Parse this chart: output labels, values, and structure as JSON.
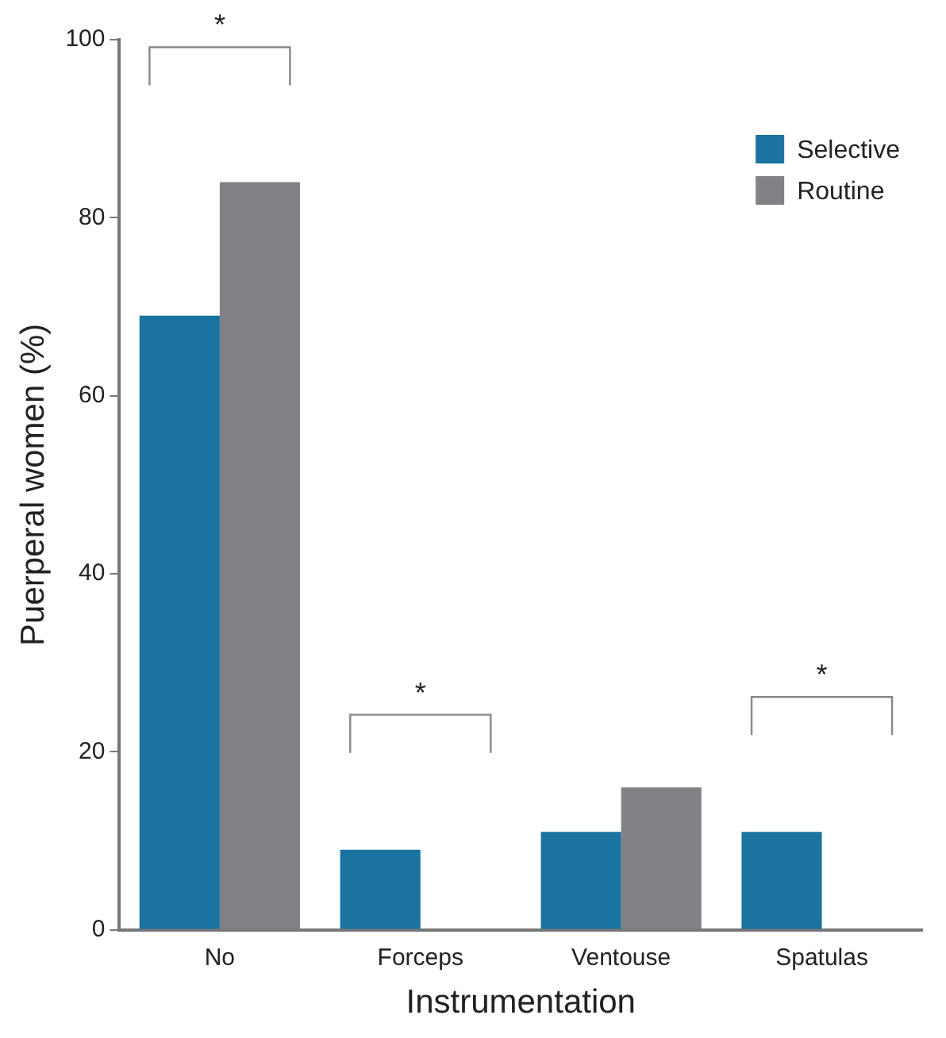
{
  "chart_data": {
    "type": "bar",
    "xlabel": "Instrumentation",
    "ylabel": "Puerperal women (%)",
    "categories": [
      "No",
      "Forceps",
      "Ventouse",
      "Spatulas"
    ],
    "series": [
      {
        "name": "Selective",
        "color": "#1a73a0",
        "values": [
          69,
          9,
          11,
          11
        ]
      },
      {
        "name": "Routine",
        "color": "#818286",
        "values": [
          84,
          0,
          16,
          0
        ]
      }
    ],
    "ylim": [
      0,
      100
    ],
    "yticks": [
      0,
      20,
      40,
      60,
      80,
      100
    ],
    "grid": false,
    "legend": "top right",
    "annotations": [
      "*",
      "*",
      "*"
    ]
  }
}
